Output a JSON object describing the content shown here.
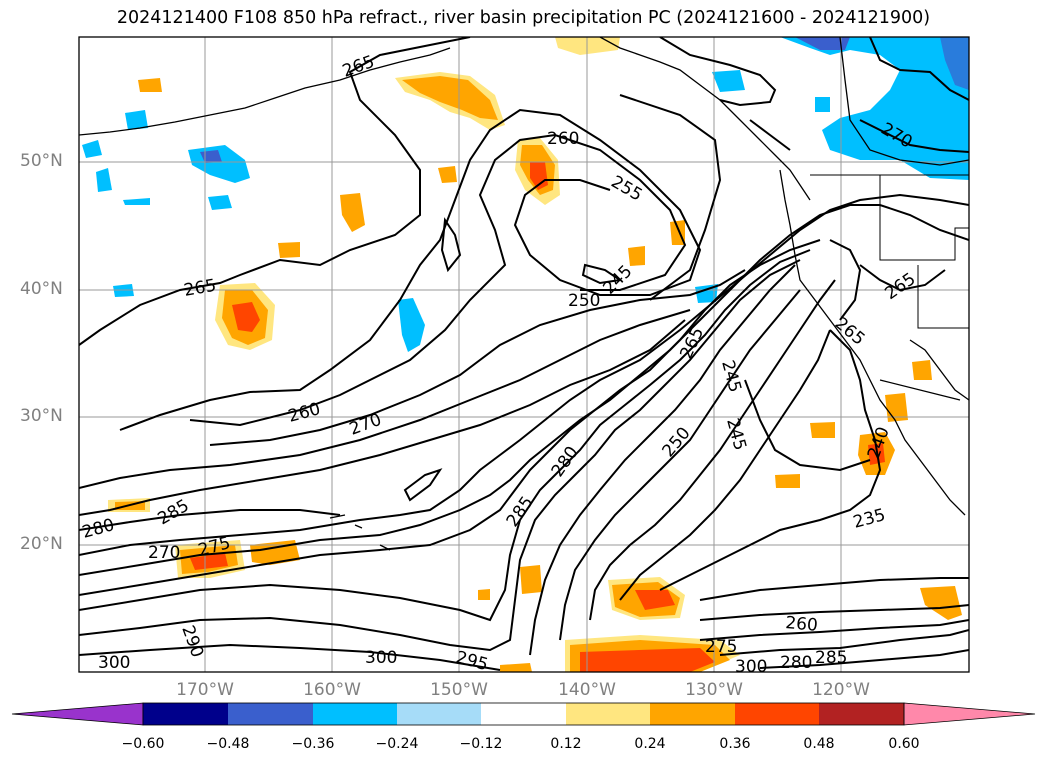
{
  "header": {
    "title": "2024121400 F108 850 hPa refract., river basin precipitation PC (2024121600 - 2024121900)"
  },
  "map": {
    "projection": "lat-lon",
    "lat_labels": [
      "50°N",
      "40°N",
      "30°N",
      "20°N"
    ],
    "lon_labels": [
      "170°W",
      "160°W",
      "150°W",
      "140°W",
      "130°W",
      "120°W"
    ],
    "contour_variable": "850 hPa refractivity",
    "contour_labels": [
      "265",
      "260",
      "255",
      "250",
      "245",
      "270",
      "265",
      "265",
      "265",
      "260",
      "270",
      "280",
      "285",
      "280",
      "285",
      "270",
      "275",
      "290",
      "300",
      "300",
      "295",
      "265",
      "245",
      "250",
      "245",
      "240",
      "235",
      "260",
      "275",
      "300",
      "280",
      "285"
    ],
    "shading_variable": "river basin precipitation PC"
  },
  "colorbar": {
    "ticks": [
      "−0.60",
      "−0.48",
      "−0.36",
      "−0.24",
      "−0.12",
      "0.12",
      "0.24",
      "0.36",
      "0.48",
      "0.60"
    ],
    "colors": [
      "#9933cc",
      "#00008b",
      "#3a5fcd",
      "#00bfff",
      "#a6dcf8",
      "#ffffff",
      "#ffe680",
      "#ffa500",
      "#ff4500",
      "#b22222",
      "#ff88aa"
    ]
  }
}
